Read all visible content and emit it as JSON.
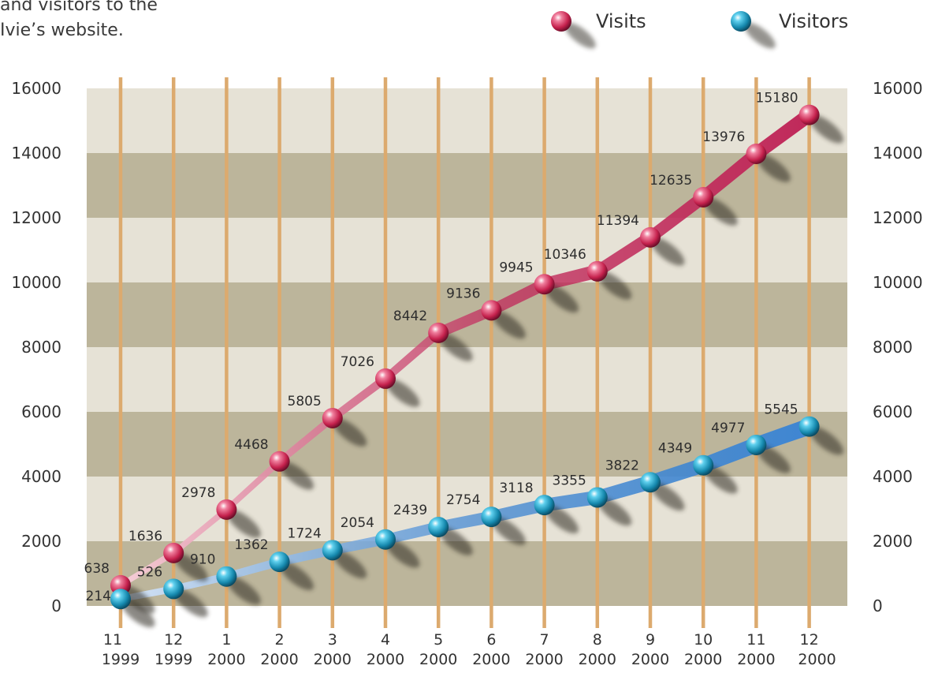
{
  "intro_lines": [
    "and visitors to the",
    "Ivie’s website."
  ],
  "chart_data": {
    "type": "line",
    "title": "",
    "xlabel": "",
    "ylabel": "",
    "categories": [
      [
        "11",
        "1999"
      ],
      [
        "12",
        "1999"
      ],
      [
        "1",
        "2000"
      ],
      [
        "2",
        "2000"
      ],
      [
        "3",
        "2000"
      ],
      [
        "4",
        "2000"
      ],
      [
        "5",
        "2000"
      ],
      [
        "6",
        "2000"
      ],
      [
        "7",
        "2000"
      ],
      [
        "8",
        "2000"
      ],
      [
        "9",
        "2000"
      ],
      [
        "10",
        "2000"
      ],
      [
        "11",
        "2000"
      ],
      [
        "12",
        "2000"
      ]
    ],
    "ylim": [
      0,
      16000
    ],
    "yticks": [
      0,
      2000,
      4000,
      6000,
      8000,
      10000,
      12000,
      14000,
      16000
    ],
    "legend_position": "top-right",
    "grid": true,
    "series": [
      {
        "name": "Visits",
        "color": "#c0295a",
        "light_color": "#f6cfd8",
        "values": [
          638,
          1636,
          2978,
          4468,
          5805,
          7026,
          8442,
          9136,
          9945,
          10346,
          11394,
          12635,
          13976,
          15180
        ]
      },
      {
        "name": "Visitors",
        "color": "#3f86d2",
        "light_color": "#d6e4f6",
        "values": [
          214,
          526,
          910,
          1362,
          1724,
          2054,
          2439,
          2754,
          3118,
          3355,
          3822,
          4349,
          4977,
          5545
        ]
      }
    ],
    "colors": {
      "band_light": "#e6e2d6",
      "band_dark": "#bcb59b",
      "vertical_gridline": "#dcaa6e",
      "bead_visits": "#d42a56",
      "bead_visitors": "#1591b5"
    }
  }
}
